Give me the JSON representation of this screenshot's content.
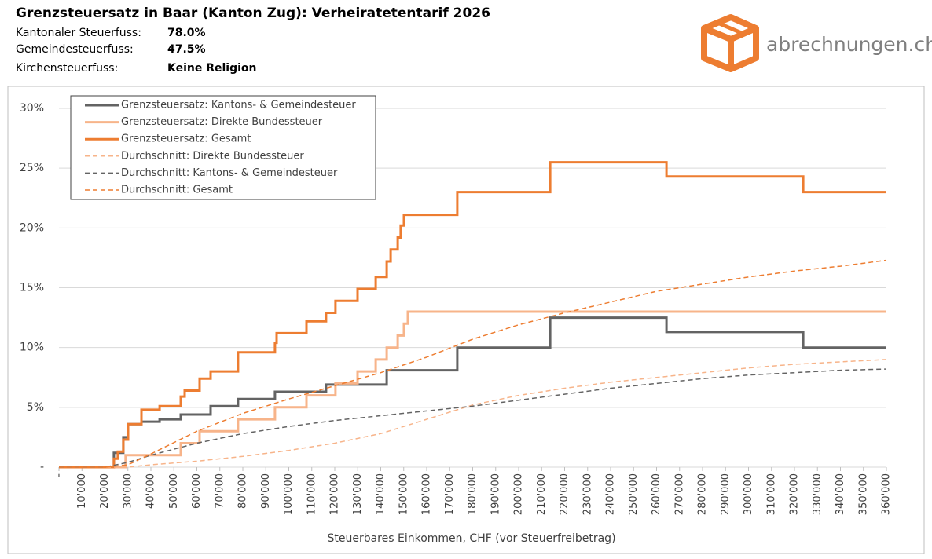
{
  "brand": "abrechnungen.ch",
  "chart_data": {
    "type": "line",
    "title": "Grenzsteuersatz in Baar (Kanton Zug): Verheiratetentarif 2026",
    "info": [
      {
        "label": "Kantonaler Steuerfuss:",
        "value": "78.0%"
      },
      {
        "label": "Gemeindesteuerfuss:",
        "value": "47.5%"
      },
      {
        "label": "Kirchensteuerfuss:",
        "value": "Keine Religion"
      }
    ],
    "x_label": "Steuerbares Einkommen, CHF (vor Steuerfreibetrag)",
    "xlim": [
      0,
      360000
    ],
    "ylim": [
      0,
      30
    ],
    "xticks": [
      {
        "value": 0,
        "label": "-"
      },
      {
        "value": 10000,
        "label": "10'000"
      },
      {
        "value": 20000,
        "label": "20'000"
      },
      {
        "value": 30000,
        "label": "30'000"
      },
      {
        "value": 40000,
        "label": "40'000"
      },
      {
        "value": 50000,
        "label": "50'000"
      },
      {
        "value": 60000,
        "label": "60'000"
      },
      {
        "value": 70000,
        "label": "70'000"
      },
      {
        "value": 80000,
        "label": "80'000"
      },
      {
        "value": 90000,
        "label": "90'000"
      },
      {
        "value": 100000,
        "label": "100'000"
      },
      {
        "value": 110000,
        "label": "110'000"
      },
      {
        "value": 120000,
        "label": "120'000"
      },
      {
        "value": 130000,
        "label": "130'000"
      },
      {
        "value": 140000,
        "label": "140'000"
      },
      {
        "value": 150000,
        "label": "150'000"
      },
      {
        "value": 160000,
        "label": "160'000"
      },
      {
        "value": 170000,
        "label": "170'000"
      },
      {
        "value": 180000,
        "label": "180'000"
      },
      {
        "value": 190000,
        "label": "190'000"
      },
      {
        "value": 200000,
        "label": "200'000"
      },
      {
        "value": 210000,
        "label": "210'000"
      },
      {
        "value": 220000,
        "label": "220'000"
      },
      {
        "value": 230000,
        "label": "230'000"
      },
      {
        "value": 240000,
        "label": "240'000"
      },
      {
        "value": 250000,
        "label": "250'000"
      },
      {
        "value": 260000,
        "label": "260'000"
      },
      {
        "value": 270000,
        "label": "270'000"
      },
      {
        "value": 280000,
        "label": "280'000"
      },
      {
        "value": 290000,
        "label": "290'000"
      },
      {
        "value": 300000,
        "label": "300'000"
      },
      {
        "value": 310000,
        "label": "310'000"
      },
      {
        "value": 320000,
        "label": "320'000"
      },
      {
        "value": 330000,
        "label": "330'000"
      },
      {
        "value": 340000,
        "label": "340'000"
      },
      {
        "value": 350000,
        "label": "350'000"
      },
      {
        "value": 360000,
        "label": "360'000"
      }
    ],
    "yticks": [
      {
        "value": 0,
        "label": "-"
      },
      {
        "value": 5,
        "label": "5%"
      },
      {
        "value": 10,
        "label": "10%"
      },
      {
        "value": 15,
        "label": "15%"
      },
      {
        "value": 20,
        "label": "20%"
      },
      {
        "value": 25,
        "label": "25%"
      },
      {
        "value": 30,
        "label": "30%"
      }
    ],
    "grid": true,
    "legend": "top-left",
    "series": [
      {
        "name": "Grenzsteuersatz: Kantons- & Gemeindesteuer",
        "color": "#636363",
        "style": "solid",
        "x": [
          0,
          23900,
          23900,
          28000,
          28000,
          30100,
          30100,
          35900,
          35900,
          43800,
          43800,
          53000,
          53000,
          66000,
          66000,
          77900,
          77900,
          94000,
          94000,
          116200,
          116200,
          142600,
          142600,
          173300,
          173300,
          213700,
          213700,
          264300,
          264300,
          323800,
          323800,
          360000
        ],
        "values": [
          0,
          0,
          1.2,
          1.2,
          2.5,
          2.5,
          3.6,
          3.6,
          3.8,
          3.8,
          4.0,
          4.0,
          4.4,
          4.4,
          5.1,
          5.1,
          5.7,
          5.7,
          6.3,
          6.3,
          6.9,
          6.9,
          8.1,
          8.1,
          10.0,
          10.0,
          12.5,
          12.5,
          11.3,
          11.3,
          10.0,
          10.0
        ]
      },
      {
        "name": "Grenzsteuersatz: Direkte Bundessteuer",
        "color": "#f7b48a",
        "style": "solid",
        "x": [
          0,
          29000,
          29000,
          53000,
          53000,
          61200,
          61200,
          77900,
          77900,
          94000,
          94000,
          107700,
          107700,
          120300,
          120300,
          129900,
          129900,
          137800,
          137800,
          142600,
          142600,
          147400,
          147400,
          150100,
          150100,
          151800,
          151800,
          360000
        ],
        "values": [
          0,
          0,
          1,
          1,
          2,
          2,
          3,
          3,
          4,
          4,
          5,
          5,
          6,
          6,
          7,
          7,
          8,
          8,
          9,
          9,
          10,
          10,
          11,
          11,
          12,
          12,
          13,
          13
        ]
      },
      {
        "name": "Grenzsteuersatz: Gesamt",
        "color": "#ed7d31",
        "style": "solid",
        "x": [
          0,
          23900,
          23900,
          25600,
          25600,
          28000,
          28000,
          30100,
          30100,
          35900,
          35900,
          43800,
          43800,
          53000,
          53000,
          54700,
          54700,
          61200,
          61200,
          66000,
          66000,
          77900,
          77900,
          94000,
          94000,
          94700,
          94700,
          107700,
          107700,
          116200,
          116200,
          120300,
          120300,
          129900,
          129900,
          137800,
          137800,
          142600,
          142600,
          144300,
          144300,
          147400,
          147400,
          148700,
          148700,
          150100,
          150100,
          173300,
          173300,
          213700,
          213700,
          264300,
          264300,
          323800,
          323800,
          360000
        ],
        "values": [
          0,
          0,
          0.7,
          0.7,
          1.3,
          1.3,
          2.3,
          2.3,
          3.6,
          3.6,
          4.8,
          4.8,
          5.1,
          5.1,
          5.9,
          5.9,
          6.4,
          6.4,
          7.4,
          7.4,
          8.0,
          8.0,
          9.6,
          9.6,
          10.4,
          10.4,
          11.2,
          11.2,
          12.2,
          12.2,
          12.9,
          12.9,
          13.9,
          13.9,
          14.9,
          14.9,
          15.9,
          15.9,
          17.2,
          17.2,
          18.2,
          18.2,
          19.2,
          19.2,
          20.2,
          20.2,
          21.1,
          21.1,
          23.0,
          23.0,
          25.5,
          25.5,
          24.3,
          24.3,
          23.0,
          23.0
        ]
      },
      {
        "name": "Durchschnitt: Direkte Bundessteuer",
        "color": "#f7b48a",
        "style": "dashed",
        "x": [
          0,
          20000,
          30000,
          40000,
          60000,
          80000,
          100000,
          120000,
          140000,
          160000,
          180000,
          200000,
          220000,
          240000,
          260000,
          280000,
          300000,
          320000,
          340000,
          360000
        ],
        "values": [
          0,
          0,
          0,
          0.2,
          0.5,
          0.9,
          1.4,
          2.0,
          2.8,
          4.0,
          5.2,
          6.0,
          6.6,
          7.1,
          7.5,
          7.9,
          8.3,
          8.6,
          8.8,
          9.0
        ]
      },
      {
        "name": "Durchschnitt: Kantons- & Gemeindesteuer",
        "color": "#636363",
        "style": "dashed",
        "x": [
          0,
          20000,
          30000,
          40000,
          60000,
          80000,
          100000,
          120000,
          140000,
          160000,
          180000,
          200000,
          220000,
          240000,
          260000,
          280000,
          300000,
          320000,
          340000,
          360000
        ],
        "values": [
          0,
          0,
          0.4,
          1.0,
          2.0,
          2.8,
          3.4,
          3.9,
          4.3,
          4.7,
          5.1,
          5.6,
          6.1,
          6.6,
          7.0,
          7.4,
          7.7,
          7.9,
          8.1,
          8.2
        ]
      },
      {
        "name": "Durchschnitt: Gesamt",
        "color": "#ed7d31",
        "style": "dashed",
        "x": [
          0,
          20000,
          30000,
          40000,
          60000,
          80000,
          100000,
          120000,
          140000,
          160000,
          180000,
          200000,
          220000,
          240000,
          260000,
          280000,
          300000,
          320000,
          340000,
          360000
        ],
        "values": [
          0,
          0,
          0.2,
          1.1,
          3.0,
          4.5,
          5.7,
          6.8,
          7.9,
          9.2,
          10.7,
          11.9,
          12.9,
          13.8,
          14.7,
          15.3,
          15.9,
          16.4,
          16.8,
          17.3
        ]
      }
    ]
  }
}
